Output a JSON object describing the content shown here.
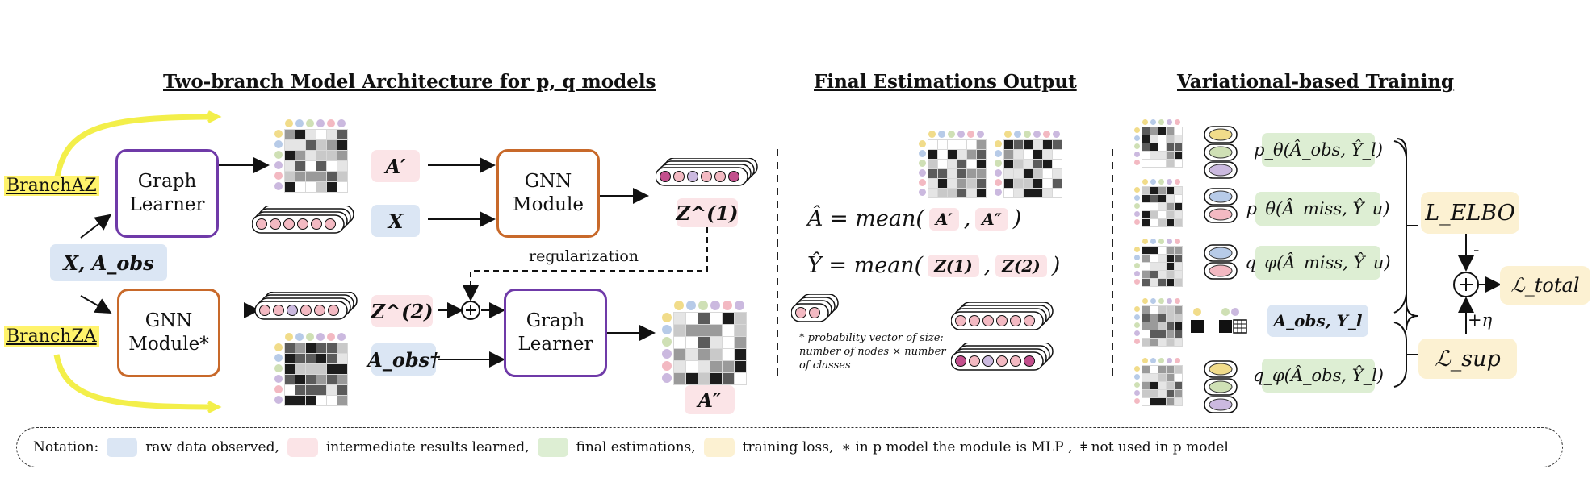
{
  "titles": {
    "left": "Two-branch Model Architecture for p, q models",
    "middle": "Final Estimations Output",
    "right": "Variational-based Training"
  },
  "branches": {
    "az": "BranchAZ",
    "za": "BranchZA"
  },
  "boxes": {
    "graph_learner_top": "Graph Learner",
    "gnn_top": "GNN Module",
    "gnn_bottom": "GNN Module*",
    "graph_learner_bottom": "Graph Learner"
  },
  "tags": {
    "x_aobs": "X, A_obs",
    "a_prime": "A′",
    "x": "X",
    "z1": "Z^(1)",
    "z2": "Z^(2)",
    "aobs_dagger": "A_obs†",
    "a_double": "A″"
  },
  "regularization": "regularization",
  "formulas": {
    "a_hat": {
      "lhs": "Â = mean(",
      "a": "A′",
      "b": "A″",
      "close": ")"
    },
    "y_hat": {
      "lhs": "Ŷ = mean(",
      "a": "Z(1)",
      "b": "Z(2)",
      "close": ")"
    }
  },
  "prob_note": "* probability vector of size: number of nodes × number of classes",
  "training": {
    "terms": [
      "p_θ(Â_obs, Ŷ_l)",
      "p_θ(Â_miss, Ŷ_u)",
      "q_φ(Â_miss, Ŷ_u)",
      "A_obs, Y_l",
      "q_φ(Â_obs, Ŷ_l)"
    ],
    "l_elbo": "L_ELBO",
    "l_total": "ℒ_total",
    "l_sup": "ℒ_sup",
    "minus": "-",
    "plus_eta": "+η",
    "plus_sym": "+"
  },
  "legend": {
    "prefix": "Notation:",
    "raw": "raw data observed,",
    "intermediate": "intermediate results learned,",
    "final": "final estimations,",
    "training": "training loss,",
    "mlp": "∗ in p model the module is MLP ,",
    "dagger": "ǂ not used in p model"
  },
  "colors": {
    "raw": "#dbe6f4",
    "intermediate": "#fbe4e7",
    "final": "#ddeed3",
    "training": "#fcf1d2",
    "branch_highlight": "#fff36b",
    "purple": "#6f3aa8",
    "orange": "#c8692a"
  }
}
